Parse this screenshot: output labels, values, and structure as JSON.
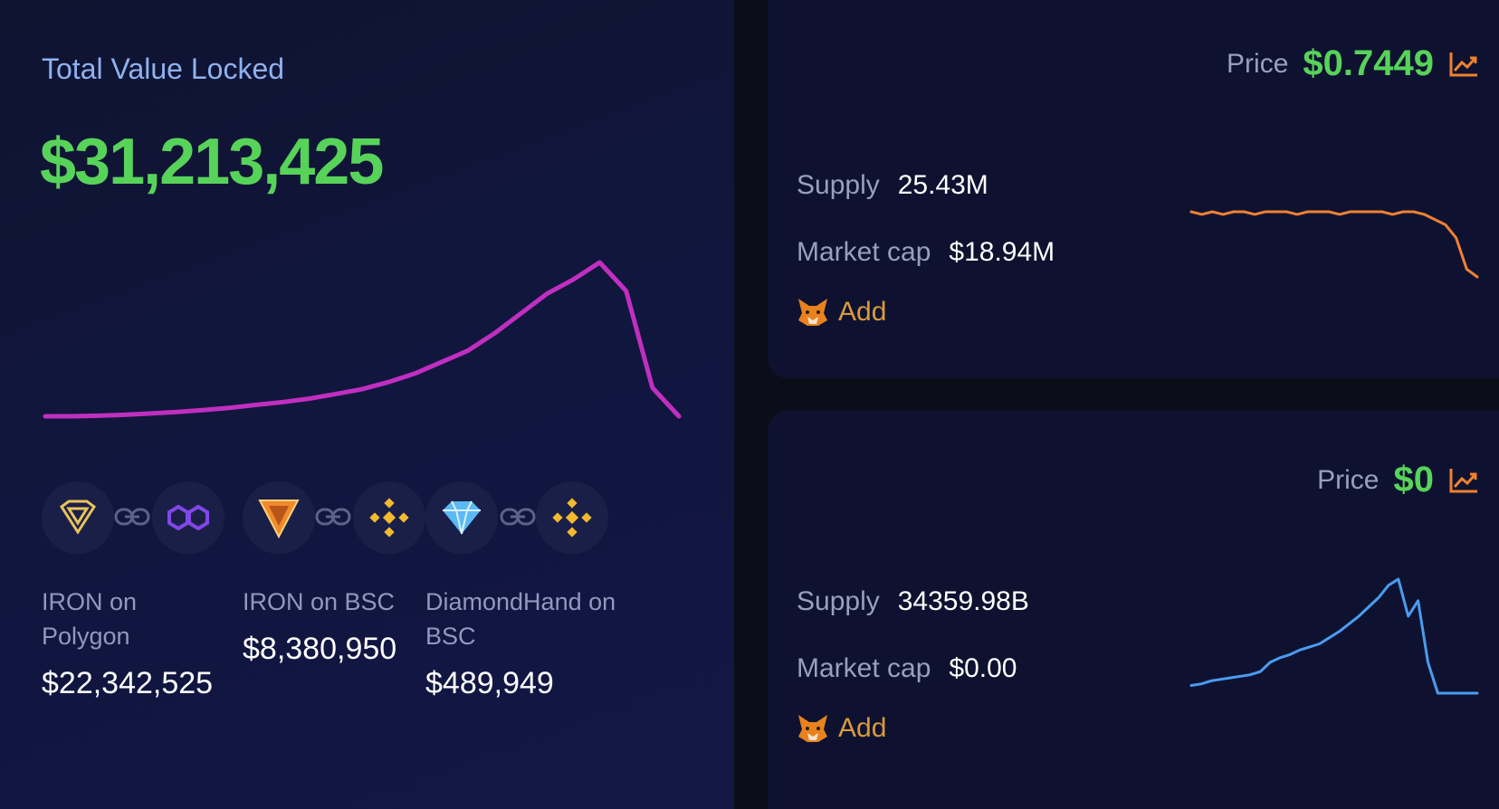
{
  "tvl": {
    "title": "Total Value Locked",
    "value": "$31,213,425"
  },
  "networks": [
    {
      "name": "IRON on Polygon",
      "value": "$22,342,525"
    },
    {
      "name": "IRON on BSC",
      "value": "$8,380,950"
    },
    {
      "name": "DiamondHand on BSC",
      "value": "$489,949"
    }
  ],
  "tokens": [
    {
      "price_label": "Price",
      "price": "$0.7449",
      "supply_label": "Supply",
      "supply": "25.43M",
      "mcap_label": "Market cap",
      "mcap": "$18.94M",
      "add_label": "Add"
    },
    {
      "price_label": "Price",
      "price": "$0",
      "supply_label": "Supply",
      "supply": "34359.98B",
      "mcap_label": "Market cap",
      "mcap": "$0.00",
      "add_label": "Add"
    }
  ],
  "colors": {
    "accent_green": "#58d35a",
    "tvl_line": "#c02fc0",
    "spark_orange": "#ef8132",
    "spark_blue": "#4a9cf0",
    "add_orange": "#d99a3e"
  },
  "chart_data": [
    {
      "type": "line",
      "series": [
        {
          "values": [
            1.0,
            1.0,
            1.02,
            1.05,
            1.1,
            1.15,
            1.22,
            1.3,
            1.4,
            1.5,
            1.62,
            1.78,
            1.95,
            2.2,
            2.5,
            2.9,
            3.3,
            3.9,
            4.6,
            5.3,
            5.8,
            6.4,
            5.4,
            2.0,
            1.0
          ]
        }
      ]
    },
    {
      "type": "line",
      "series": [
        {
          "values": [
            1.0,
            0.99,
            1.0,
            0.99,
            1.0,
            1.0,
            0.99,
            1.0,
            1.0,
            1.0,
            0.99,
            1.0,
            1.0,
            1.0,
            0.99,
            1.0,
            1.0,
            1.0,
            1.0,
            0.99,
            1.0,
            1.0,
            0.99,
            0.97,
            0.95,
            0.9,
            0.78,
            0.75
          ]
        }
      ]
    },
    {
      "type": "line",
      "series": [
        {
          "values": [
            0.05,
            0.06,
            0.08,
            0.09,
            0.1,
            0.11,
            0.12,
            0.14,
            0.2,
            0.23,
            0.25,
            0.28,
            0.3,
            0.32,
            0.36,
            0.4,
            0.45,
            0.5,
            0.56,
            0.62,
            0.7,
            0.74,
            0.5,
            0.6,
            0.2,
            0.0,
            0.0,
            0.0,
            0.0,
            0.0
          ]
        }
      ]
    }
  ]
}
